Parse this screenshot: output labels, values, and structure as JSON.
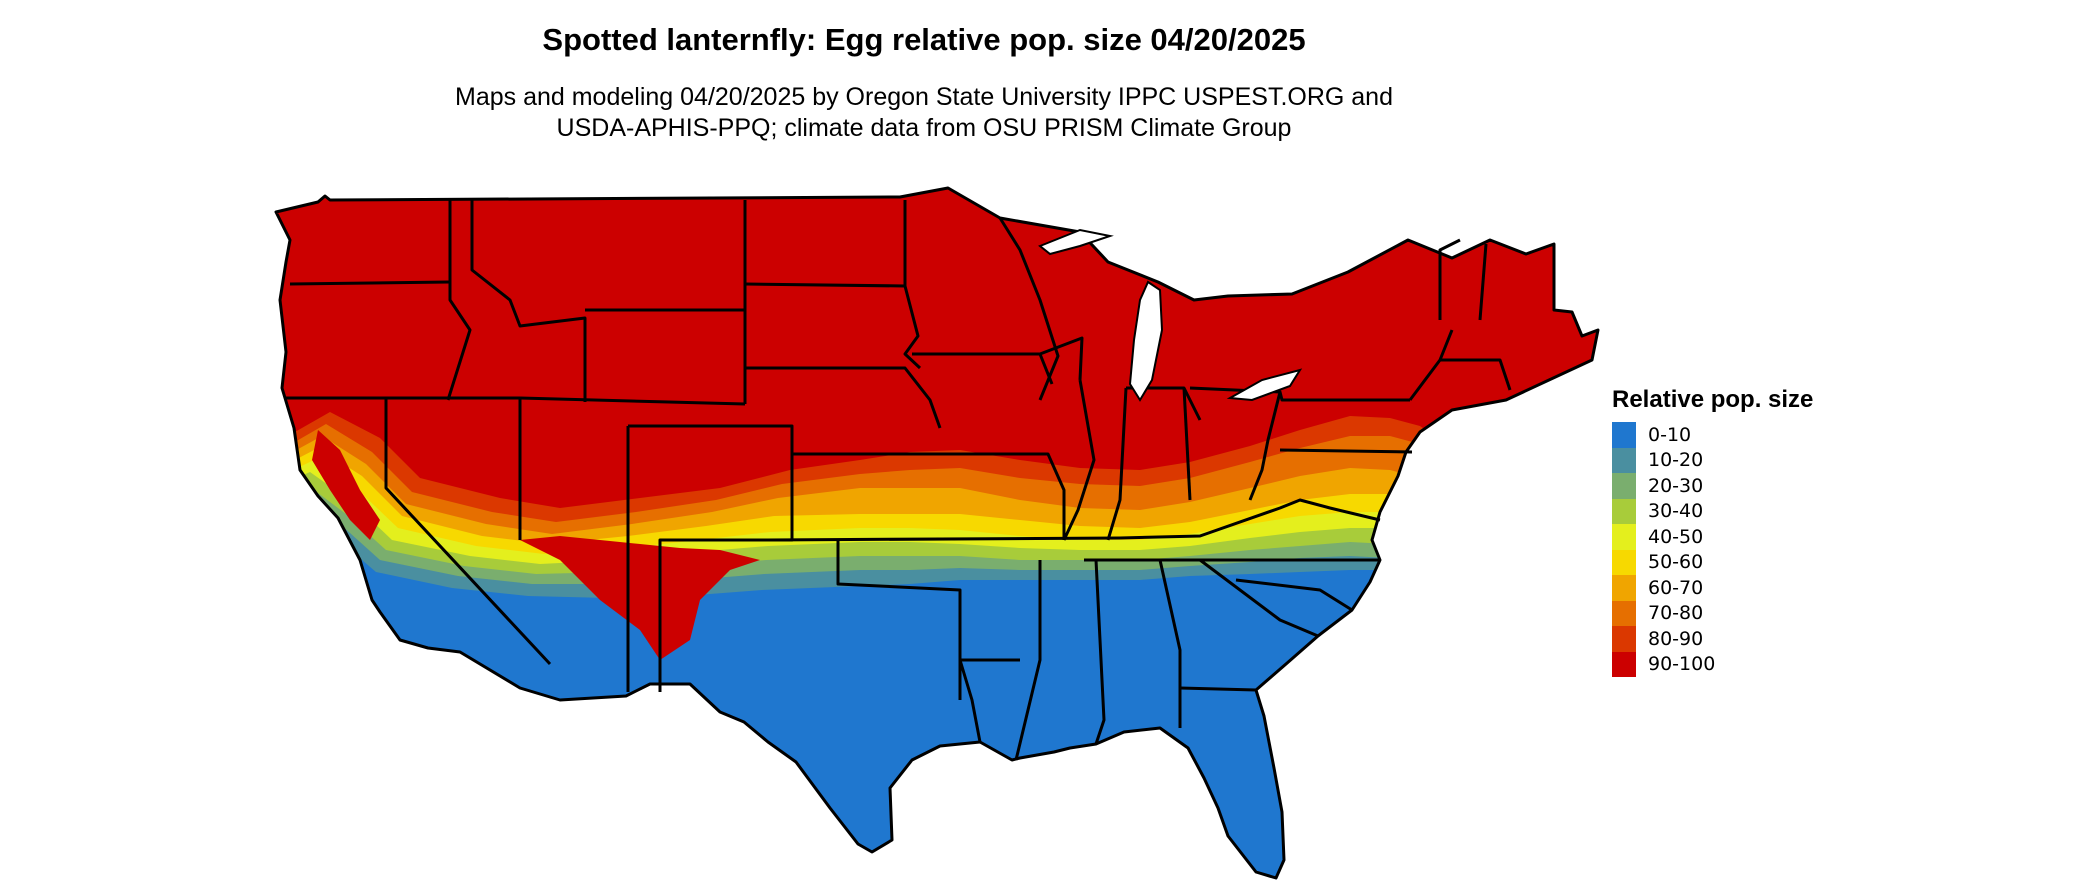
{
  "title": "Spotted lanternfly: Egg relative pop. size 04/20/2025",
  "subtitle": {
    "line1": "Maps and modeling 04/20/2025 by Oregon State University IPPC USPEST.ORG and",
    "line2": "USDA-APHIS-PPQ; climate data from OSU PRISM Climate Group"
  },
  "legend": {
    "title": "Relative pop. size",
    "items": [
      {
        "label": "0-10",
        "color": "#1f77cf"
      },
      {
        "label": "10-20",
        "color": "#4a8fa0"
      },
      {
        "label": "20-30",
        "color": "#7aae6e"
      },
      {
        "label": "30-40",
        "color": "#a8cc3a"
      },
      {
        "label": "40-50",
        "color": "#e4ef1d"
      },
      {
        "label": "50-60",
        "color": "#f7d900"
      },
      {
        "label": "60-70",
        "color": "#f0a500"
      },
      {
        "label": "70-80",
        "color": "#e66f00"
      },
      {
        "label": "80-90",
        "color": "#db3800"
      },
      {
        "label": "90-100",
        "color": "#cc0000"
      }
    ]
  },
  "map": {
    "region": "Contiguous United States",
    "pattern": "Northern and interior states 90-100 (red); southern tier states 0-10 (blue); a banded gradient of intermediate classes runs through the mid-south from California to Virginia"
  }
}
